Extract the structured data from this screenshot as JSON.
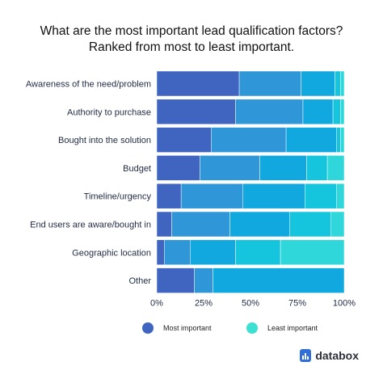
{
  "title_line1": "What are the most important lead qualification factors?",
  "title_line2": "Ranked from most to least important.",
  "legend": {
    "most": "Most important",
    "least": "Least important"
  },
  "brand": "databox",
  "colors": {
    "rank1": "#4065c0",
    "rank2": "#2f96d8",
    "rank3": "#10a8df",
    "rank4": "#14c5dd",
    "rank5": "#2fd7db",
    "rank6": "#3ee0d4",
    "separator": "#ffffff",
    "most_dot": "#4065c0",
    "least_dot": "#3ee0d4"
  },
  "chart_data": {
    "type": "bar",
    "orientation": "horizontal",
    "stacked": true,
    "title": "",
    "xlabel": "",
    "ylabel": "",
    "xlim": [
      0,
      100
    ],
    "x_ticks": [
      "0%",
      "25%",
      "50%",
      "75%",
      "100%"
    ],
    "categories": [
      "Awareness of the need/problem",
      "Authority to purchase",
      "Bought into the solution",
      "Budget",
      "Timeline/urgency",
      "End users are aware/bought in",
      "Geographic location",
      "Other"
    ],
    "series_order_note": "segments ordered from most important (left) to least important (right)",
    "series": [
      {
        "values": [
          44,
          42,
          29,
          23,
          13,
          8,
          4,
          20
        ]
      },
      {
        "values": [
          33,
          36,
          40,
          32,
          33,
          31,
          14,
          10
        ]
      },
      {
        "values": [
          18,
          16,
          27,
          25,
          33,
          32,
          24,
          70
        ]
      },
      {
        "values": [
          3,
          4,
          2,
          11,
          17,
          22,
          24,
          0
        ]
      },
      {
        "values": [
          2,
          2,
          2,
          9,
          4,
          7,
          34,
          0
        ]
      }
    ],
    "legend_position": "bottom"
  }
}
